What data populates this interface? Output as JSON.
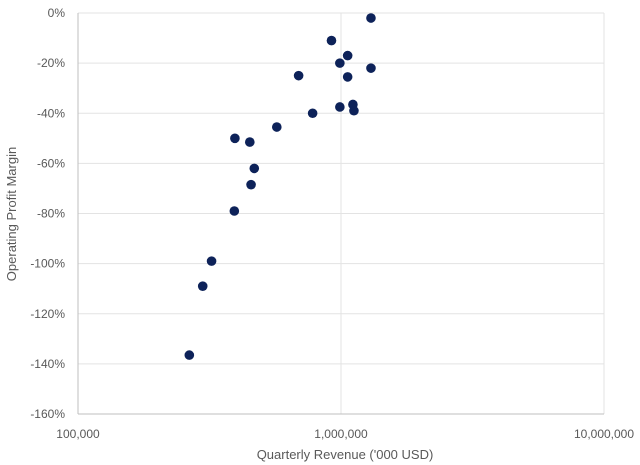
{
  "chart_data": {
    "type": "scatter",
    "xlabel": "Quarterly Revenue ('000 USD)",
    "ylabel": "Operating Profit Margin",
    "x_scale": "log",
    "xlim": [
      100000,
      10000000
    ],
    "ylim": [
      -160,
      0
    ],
    "x_ticks": [
      100000,
      1000000,
      10000000
    ],
    "x_tick_labels": [
      "100,000",
      "1,000,000",
      "10,000,000"
    ],
    "y_ticks": [
      0,
      -20,
      -40,
      -60,
      -80,
      -100,
      -120,
      -140,
      -160
    ],
    "y_tick_labels": [
      "0%",
      "-20%",
      "-40%",
      "-60%",
      "-80%",
      "-100%",
      "-120%",
      "-140%",
      "-160%"
    ],
    "grid": true,
    "legend": "none",
    "marker_color": "#0d2259",
    "points": [
      {
        "x": 1300000,
        "y": -2
      },
      {
        "x": 920000,
        "y": -11
      },
      {
        "x": 1060000,
        "y": -17
      },
      {
        "x": 990000,
        "y": -20
      },
      {
        "x": 1300000,
        "y": -22
      },
      {
        "x": 690000,
        "y": -25
      },
      {
        "x": 1060000,
        "y": -25.5
      },
      {
        "x": 1110000,
        "y": -36.5
      },
      {
        "x": 990000,
        "y": -37.5
      },
      {
        "x": 1120000,
        "y": -39
      },
      {
        "x": 780000,
        "y": -40
      },
      {
        "x": 570000,
        "y": -45.5
      },
      {
        "x": 395000,
        "y": -50
      },
      {
        "x": 450000,
        "y": -51.5
      },
      {
        "x": 468000,
        "y": -62
      },
      {
        "x": 455000,
        "y": -68.5
      },
      {
        "x": 393000,
        "y": -79
      },
      {
        "x": 322000,
        "y": -99
      },
      {
        "x": 298000,
        "y": -109
      },
      {
        "x": 265000,
        "y": -136.5
      }
    ]
  }
}
